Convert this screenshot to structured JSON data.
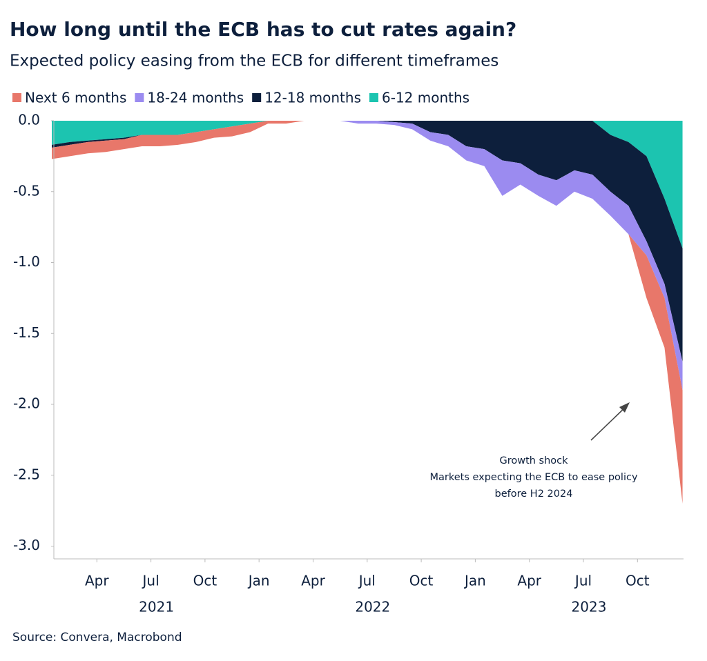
{
  "chart_data": {
    "type": "area",
    "title": "How long until the ECB has to cut rates again?",
    "subtitle": "Expected policy easing from the ECB for different timeframes",
    "source": "Source: Convera, Macrobond",
    "annotation": [
      "Growth shock",
      "Markets expecting the ECB to ease policy",
      "before H2 2024"
    ],
    "x": [
      "2021-01",
      "2021-02",
      "2021-03",
      "2021-04",
      "2021-05",
      "2021-06",
      "2021-07",
      "2021-08",
      "2021-09",
      "2021-10",
      "2021-11",
      "2021-12",
      "2022-01",
      "2022-02",
      "2022-03",
      "2022-04",
      "2022-05",
      "2022-06",
      "2022-07",
      "2022-08",
      "2022-09",
      "2022-10",
      "2022-11",
      "2022-12",
      "2023-01",
      "2023-02",
      "2023-03",
      "2023-04",
      "2023-05",
      "2023-06",
      "2023-07",
      "2023-08",
      "2023-09",
      "2023-10",
      "2023-11",
      "2023-12"
    ],
    "series": [
      {
        "name": "Next 6 months",
        "color": "#e8776a",
        "values": [
          -0.08,
          -0.08,
          -0.08,
          -0.08,
          -0.07,
          -0.08,
          -0.08,
          -0.07,
          -0.07,
          -0.06,
          -0.07,
          -0.06,
          -0.02,
          -0.02,
          0,
          0,
          0,
          0,
          0,
          0,
          0,
          0,
          0,
          0,
          0,
          0,
          0,
          0,
          0,
          0,
          0,
          0,
          0,
          -0.3,
          -0.35,
          -0.8
        ]
      },
      {
        "name": "18-24 months",
        "color": "#9b8bf0",
        "values": [
          0,
          0,
          0,
          0,
          0,
          0,
          0,
          0,
          0,
          0,
          0,
          0,
          0,
          0,
          0,
          0,
          0,
          -0.02,
          -0.02,
          -0.02,
          -0.04,
          -0.06,
          -0.08,
          -0.1,
          -0.12,
          -0.25,
          -0.15,
          -0.15,
          -0.18,
          -0.15,
          -0.17,
          -0.17,
          -0.2,
          -0.1,
          -0.1,
          -0.2
        ]
      },
      {
        "name": "12-18 months",
        "color": "#0d1f3c",
        "values": [
          -0.02,
          -0.02,
          -0.01,
          -0.01,
          -0.01,
          0,
          0,
          0,
          0,
          0,
          0,
          0,
          0,
          0,
          0,
          0,
          0,
          0,
          0,
          -0.01,
          -0.02,
          -0.08,
          -0.1,
          -0.18,
          -0.2,
          -0.28,
          -0.3,
          -0.38,
          -0.42,
          -0.35,
          -0.38,
          -0.4,
          -0.45,
          -0.6,
          -0.6,
          -0.8
        ]
      },
      {
        "name": "6-12 months",
        "color": "#1cc4b0",
        "values": [
          -0.17,
          -0.15,
          -0.14,
          -0.13,
          -0.12,
          -0.1,
          -0.1,
          -0.1,
          -0.08,
          -0.06,
          -0.04,
          -0.02,
          0,
          0,
          0,
          0,
          0,
          0,
          0,
          0,
          0,
          0,
          0,
          0,
          0,
          0,
          0,
          0,
          0,
          0,
          0,
          -0.1,
          -0.15,
          -0.25,
          -0.55,
          -0.9
        ]
      }
    ],
    "ylim": [
      -3.09,
      0
    ],
    "yticks": [
      {
        "value": 0,
        "label": "0.0"
      },
      -0.5,
      {
        "value": -1,
        "label": "-1.0"
      },
      -1.5,
      {
        "value": -2,
        "label": "-2.0"
      },
      -2.5,
      {
        "value": -3,
        "label": "-3.0"
      }
    ],
    "xticks": [
      {
        "value": "2021-04",
        "label": "Apr"
      },
      {
        "value": "2021-07",
        "label": "Jul"
      },
      {
        "value": "2021-10",
        "label": "Oct"
      },
      {
        "value": "2022-01",
        "label": "Jan"
      },
      {
        "value": "2022-04",
        "label": "Apr"
      },
      {
        "value": "2022-07",
        "label": "Jul"
      },
      {
        "value": "2022-10",
        "label": "Oct"
      },
      {
        "value": "2023-01",
        "label": "Jan"
      },
      {
        "value": "2023-04",
        "label": "Apr"
      },
      {
        "value": "2023-07",
        "label": "Jul"
      },
      {
        "value": "2023-10",
        "label": "Oct"
      }
    ],
    "year_labels": [
      {
        "value": "2021-07",
        "label": "2021"
      },
      {
        "value": "2022-07",
        "label": "2022"
      },
      {
        "value": "2023-07",
        "label": "2023"
      }
    ],
    "stacked": true
  }
}
